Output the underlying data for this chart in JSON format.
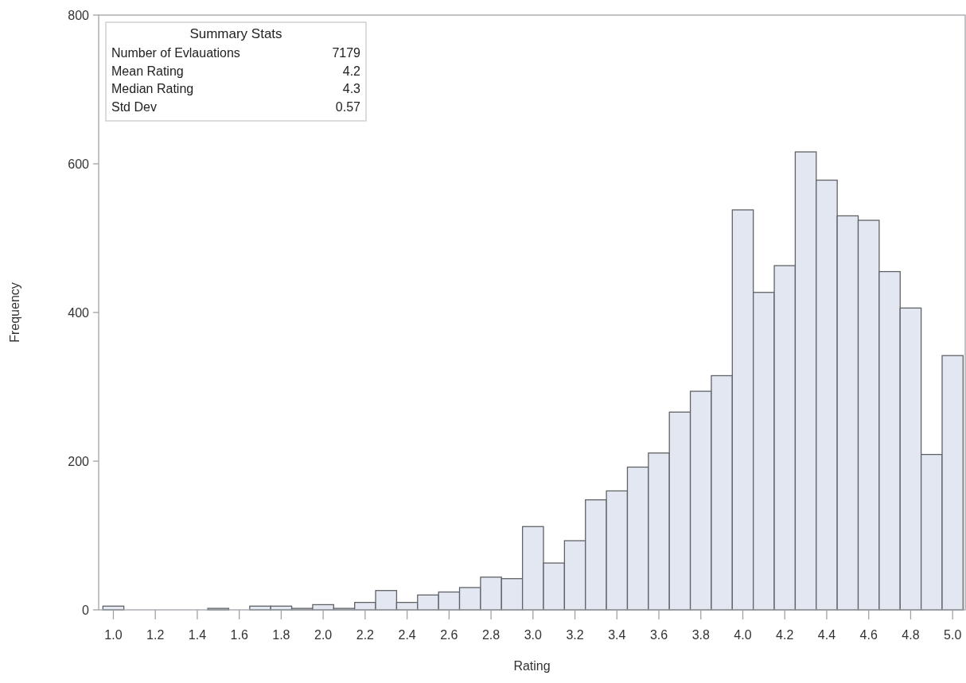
{
  "chart_data": {
    "type": "histogram",
    "xlabel": "Rating",
    "ylabel": "Frequency",
    "bins": [
      0.95,
      1.05,
      1.15,
      1.25,
      1.35,
      1.45,
      1.55,
      1.65,
      1.75,
      1.85,
      1.95,
      2.05,
      2.15,
      2.25,
      2.35,
      2.45,
      2.55,
      2.65,
      2.75,
      2.85,
      2.95,
      3.05,
      3.15,
      3.25,
      3.35,
      3.45,
      3.55,
      3.65,
      3.75,
      3.85,
      3.95,
      4.05,
      4.15,
      4.25,
      4.35,
      4.45,
      4.55,
      4.65,
      4.75,
      4.85,
      4.95,
      5.05
    ],
    "values": [
      5,
      0,
      0,
      0,
      0,
      2,
      0,
      5,
      5,
      2,
      7,
      2,
      10,
      26,
      10,
      20,
      24,
      30,
      44,
      42,
      112,
      63,
      93,
      148,
      160,
      192,
      211,
      266,
      294,
      315,
      538,
      427,
      463,
      616,
      578,
      530,
      524,
      455,
      406,
      209,
      342
    ],
    "color": "#e3e7f1",
    "xlim": [
      0.93,
      5.06
    ],
    "xticks": [
      {
        "value": 1,
        "label": "1.0"
      },
      {
        "value": 1.2,
        "label": "1.2"
      },
      {
        "value": 1.4,
        "label": "1.4"
      },
      {
        "value": 1.6,
        "label": "1.6"
      },
      {
        "value": 1.8,
        "label": "1.8"
      },
      {
        "value": 2,
        "label": "2.0"
      },
      {
        "value": 2.2,
        "label": "2.2"
      },
      {
        "value": 2.4,
        "label": "2.4"
      },
      {
        "value": 2.6,
        "label": "2.6"
      },
      {
        "value": 2.8,
        "label": "2.8"
      },
      {
        "value": 3,
        "label": "3.0"
      },
      {
        "value": 3.2,
        "label": "3.2"
      },
      {
        "value": 3.4,
        "label": "3.4"
      },
      {
        "value": 3.6,
        "label": "3.6"
      },
      {
        "value": 3.8,
        "label": "3.8"
      },
      {
        "value": 4,
        "label": "4.0"
      },
      {
        "value": 4.2,
        "label": "4.2"
      },
      {
        "value": 4.4,
        "label": "4.4"
      },
      {
        "value": 4.6,
        "label": "4.6"
      },
      {
        "value": 4.8,
        "label": "4.8"
      },
      {
        "value": 5,
        "label": "5.0"
      }
    ],
    "ylim": [
      0,
      800
    ],
    "yticks": [
      0,
      200,
      400,
      600,
      800
    ],
    "annotations": [
      "Summary Stats",
      "Number of Evlauations",
      "7179",
      "Mean Rating",
      "4.2",
      "Median Rating",
      "4.3",
      "Std Dev",
      "0.57"
    ]
  }
}
